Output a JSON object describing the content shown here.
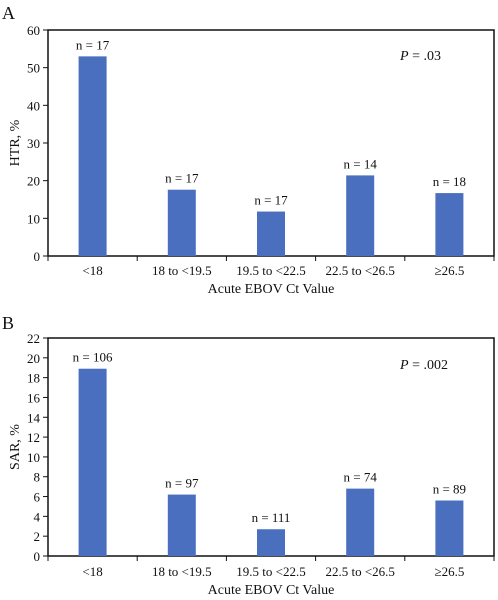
{
  "chart_data": [
    {
      "panel_label": "A",
      "type": "bar",
      "categories": [
        "<18",
        "18 to <19.5",
        "19.5 to <22.5",
        "22.5 to <26.5",
        "≥26.5"
      ],
      "values": [
        53,
        17.6,
        11.8,
        21.4,
        16.7
      ],
      "bar_labels": [
        "n = 17",
        "n = 17",
        "n = 17",
        "n = 14",
        "n = 18"
      ],
      "ylabel": "HTR, %",
      "xlabel": "Acute EBOV Ct Value",
      "ylim": [
        0,
        60
      ],
      "yticks": [
        0,
        10,
        20,
        30,
        40,
        50,
        60
      ],
      "pvalue_label": "P",
      "pvalue_text": " = .03",
      "grid": false,
      "bar_color": "#4a6fbe"
    },
    {
      "panel_label": "B",
      "type": "bar",
      "categories": [
        "<18",
        "18 to <19.5",
        "19.5 to <22.5",
        "22.5 to <26.5",
        "≥26.5"
      ],
      "values": [
        18.9,
        6.2,
        2.7,
        6.8,
        5.6
      ],
      "bar_labels": [
        "n = 106",
        "n = 97",
        "n = 111",
        "n = 74",
        "n = 89"
      ],
      "ylabel": "SAR, %",
      "xlabel": "Acute EBOV Ct Value",
      "ylim": [
        0,
        22
      ],
      "yticks": [
        0,
        2,
        4,
        6,
        8,
        10,
        12,
        14,
        16,
        18,
        20,
        22
      ],
      "pvalue_label": "P",
      "pvalue_text": " = .002",
      "grid": false,
      "bar_color": "#4a6fbe"
    }
  ]
}
